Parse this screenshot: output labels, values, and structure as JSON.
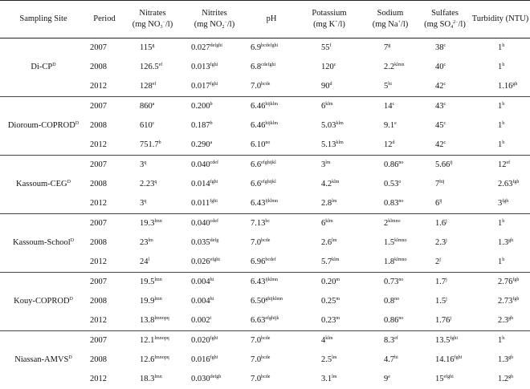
{
  "header": {
    "site": "Sampling Site",
    "period": "Period",
    "nitrates_line1": "Nitrates",
    "nitrates_line2": "(mg  NO",
    "nitrates_sub": "3",
    "nitrates_sup": "−",
    "nitrates_end": "/l)",
    "nitrites_line1": "Nitrites",
    "nitrites_line2": "(mg  NO",
    "nitrites_sub": "2",
    "nitrites_sup": "−",
    "nitrites_end": "/l)",
    "ph": "pH",
    "potassium_line1": "Potassium",
    "potassium_line2": "(mg K",
    "potassium_sup": "+",
    "potassium_end": "/l)",
    "sodium_line1": "Sodium",
    "sodium_line2": "(mg Na",
    "sodium_sup": "+",
    "sodium_end": "/l)",
    "sulfates_line1": "Sulfates",
    "sulfates_line2": "(mg  SO",
    "sulfates_sub": "4",
    "sulfates_sup": "2−",
    "sulfates_end": "/l)",
    "turbidity": "Turbidity (NTU)"
  },
  "groups": [
    {
      "site": "Di-CP",
      "site_sup": "D",
      "rows": [
        {
          "period": "2007",
          "no3": "115",
          "no3s": "g",
          "no2": "0.027",
          "no2s": "defghi",
          "ph": "6.9",
          "phs": "bcdefghi",
          "k": "55",
          "ks": "f",
          "na": "7",
          "nas": "g",
          "so4": "38",
          "so4s": "c",
          "turb": "1",
          "turbs": "h"
        },
        {
          "period": "2008",
          "no3": "126.5",
          "no3s": "ef",
          "no2": "0.013",
          "no2s": "fghi",
          "ph": "6.8",
          "phs": "cdefghi",
          "k": "120",
          "ks": "c",
          "na": "2.2",
          "nas": "klmn",
          "so4": "40",
          "so4s": "c",
          "turb": "1",
          "turbs": "h"
        },
        {
          "period": "2012",
          "no3": "128",
          "no3s": "ef",
          "no2": "0.017",
          "no2s": "fghi",
          "ph": "7.0",
          "phs": "bcde",
          "k": "90",
          "ks": "d",
          "na": "5",
          "nas": "hi",
          "so4": "42",
          "so4s": "c",
          "turb": "1.16",
          "turbs": "gh"
        }
      ]
    },
    {
      "site": "Dioroum-COPROD",
      "site_sup": "D",
      "rows": [
        {
          "period": "2007",
          "no3": "860",
          "no3s": "a",
          "no2": "0.200",
          "no2s": "b",
          "ph": "6.46",
          "phs": "hijklm",
          "k": "6",
          "ks": "klm",
          "na": "14",
          "nas": "c",
          "so4": "43",
          "so4s": "c",
          "turb": "1",
          "turbs": "h"
        },
        {
          "period": "2008",
          "no3": "610",
          "no3s": "c",
          "no2": "0.187",
          "no2s": "b",
          "ph": "6.46",
          "phs": "hijklm",
          "k": "5.03",
          "ks": "klm",
          "na": "9.1",
          "nas": "e",
          "so4": "45",
          "so4s": "c",
          "turb": "1",
          "turbs": "h"
        },
        {
          "period": "2012",
          "no3": "751.7",
          "no3s": "b",
          "no2": "0.290",
          "no2s": "a",
          "ph": "6.10",
          "phs": "no",
          "k": "5.13",
          "ks": "klm",
          "na": "12",
          "nas": "d",
          "so4": "42",
          "so4s": "c",
          "turb": "1",
          "turbs": "h"
        }
      ]
    },
    {
      "site": "Kassoum-CEG",
      "site_sup": "D",
      "rows": [
        {
          "period": "2007",
          "no3": "3",
          "no3s": "q",
          "no2": "0.040",
          "no2s": "cdef",
          "ph": "6.6",
          "phs": "efghijkl",
          "k": "3",
          "ks": "lm",
          "na": "0.86",
          "nas": "no",
          "so4": "5.66",
          "so4s": "ij",
          "turb": "12",
          "turbs": "ef"
        },
        {
          "period": "2008",
          "no3": "2.23",
          "no3s": "q",
          "no2": "0.014",
          "no2s": "fghi",
          "ph": "6.6",
          "phs": "efghijkl",
          "k": "4.2",
          "ks": "klm",
          "na": "0.53",
          "nas": "o",
          "so4": "7",
          "so4s": "hij",
          "turb": "2.63",
          "turbs": "fgh"
        },
        {
          "period": "2012",
          "no3": "3",
          "no3s": "q",
          "no2": "0.011",
          "no2s": "fghi",
          "ph": "6.43",
          "phs": "ijklmn",
          "k": "2.8",
          "ks": "lm",
          "na": "0.83",
          "nas": "no",
          "so4": "6",
          "so4s": "ij",
          "turb": "3",
          "turbs": "fgh"
        }
      ]
    },
    {
      "site": "Kassoum-School",
      "site_sup": "D",
      "rows": [
        {
          "period": "2007",
          "no3": "19.3",
          "no3s": "lmn",
          "no2": "0.040",
          "no2s": "cdef",
          "ph": "7.13",
          "phs": "bc",
          "k": "6",
          "ks": "klm",
          "na": "2",
          "nas": "klmno",
          "so4": "1.6",
          "so4s": "j",
          "turb": "1",
          "turbs": "h"
        },
        {
          "period": "2008",
          "no3": "23",
          "no3s": "lm",
          "no2": "0.035",
          "no2s": "defg",
          "ph": "7.0",
          "phs": "bcde",
          "k": "2.6",
          "ks": "lm",
          "na": "1.5",
          "nas": "klmno",
          "so4": "2.3",
          "so4s": "j",
          "turb": "1.3",
          "turbs": "gh"
        },
        {
          "period": "2012",
          "no3": "24",
          "no3s": "l",
          "no2": "0.026",
          "no2s": "efghi",
          "ph": "6.96",
          "phs": "bcdef",
          "k": "5.7",
          "ks": "klm",
          "na": "1.8",
          "nas": "klmno",
          "so4": "2",
          "so4s": "j",
          "turb": "1",
          "turbs": "h"
        }
      ]
    },
    {
      "site": "Kouy-COPROD",
      "site_sup": "D",
      "rows": [
        {
          "period": "2007",
          "no3": "19.5",
          "no3s": "lmn",
          "no2": "0.004",
          "no2s": "hi",
          "ph": "6.43",
          "phs": "ijklmn",
          "k": "0.20",
          "ks": "m",
          "na": "0.73",
          "nas": "no",
          "so4": "1.7",
          "so4s": "j",
          "turb": "2.76",
          "turbs": "fgh"
        },
        {
          "period": "2008",
          "no3": "19.9",
          "no3s": "lmn",
          "no2": "0.004",
          "no2s": "hi",
          "ph": "6.50",
          "phs": "ghijklmn",
          "k": "0.25",
          "ks": "m",
          "na": "0.8",
          "nas": "no",
          "so4": "1.5",
          "so4s": "j",
          "turb": "2.73",
          "turbs": "fgh"
        },
        {
          "period": "2012",
          "no3": "13.8",
          "no3s": "lmnopq",
          "no2": "0.002",
          "no2s": "i",
          "ph": "6.63",
          "phs": "efghijk",
          "k": "0.23",
          "ks": "m",
          "na": "0.86",
          "nas": "no",
          "so4": "1.76",
          "so4s": "j",
          "turb": "2.3",
          "turbs": "gh"
        }
      ]
    },
    {
      "site": "Niassan-AMVS",
      "site_sup": "D",
      "rows": [
        {
          "period": "2007",
          "no3": "12.1",
          "no3s": "lmnopq",
          "no2": "0.020",
          "no2s": "fghi",
          "ph": "7.0",
          "phs": "bcde",
          "k": "4",
          "ks": "klm",
          "na": "8.3",
          "nas": "ef",
          "so4": "13.5",
          "so4s": "fghi",
          "turb": "1",
          "turbs": "h"
        },
        {
          "period": "2008",
          "no3": "12.6",
          "no3s": "lmnopq",
          "no2": "0.016",
          "no2s": "fghi",
          "ph": "7.0",
          "phs": "bcde",
          "k": "2.5",
          "ks": "lm",
          "na": "4.7",
          "nas": "hi",
          "so4": "14.16",
          "so4s": "fghi",
          "turb": "1.3",
          "turbs": "gh"
        },
        {
          "period": "2012",
          "no3": "18.3",
          "no3s": "lmn",
          "no2": "0.030",
          "no2s": "defgh",
          "ph": "7.0",
          "phs": "bcde",
          "k": "3.1",
          "ks": "lm",
          "na": "9",
          "nas": "e",
          "so4": "15",
          "so4s": "efghi",
          "turb": "1.2",
          "turbs": "gh"
        }
      ]
    }
  ]
}
